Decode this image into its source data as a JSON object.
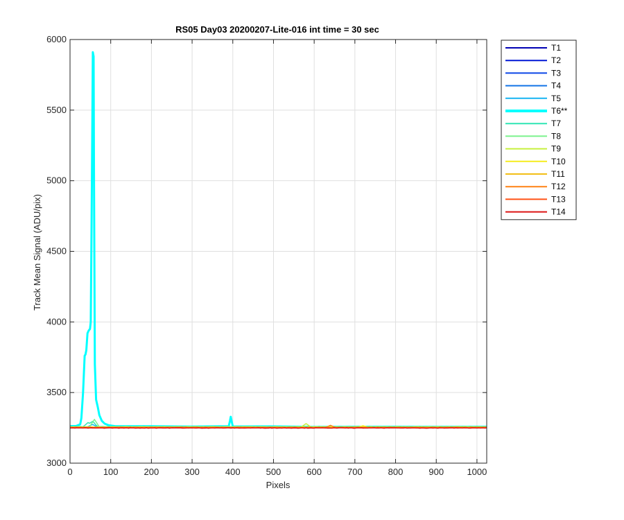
{
  "chart_data": {
    "type": "line",
    "title": "RS05 Day03 20200207-Lite-016 int time = 30 sec",
    "xlabel": "Pixels",
    "ylabel": "Track Mean Signal (ADU/pix)",
    "xlim": [
      0,
      1024
    ],
    "ylim": [
      3000,
      6000
    ],
    "xticks": [
      0,
      100,
      200,
      300,
      400,
      500,
      600,
      700,
      800,
      900,
      1000
    ],
    "yticks": [
      3000,
      3500,
      4000,
      4500,
      5000,
      5500,
      6000
    ],
    "grid": true,
    "legend_placement": "outside-top-right",
    "series": [
      {
        "name": "T1",
        "color": "#0000b4",
        "baseline": 3251,
        "bumps": []
      },
      {
        "name": "T2",
        "color": "#0016d6",
        "baseline": 3252,
        "bumps": []
      },
      {
        "name": "T3",
        "color": "#0b46e8",
        "baseline": 3252,
        "bumps": []
      },
      {
        "name": "T4",
        "color": "#1273e6",
        "baseline": 3254,
        "bumps": []
      },
      {
        "name": "T5",
        "color": "#15b4f2",
        "baseline": 3256,
        "bumps": [
          [
            55,
            3275
          ]
        ]
      },
      {
        "name": "T6**",
        "color": "#00ffff",
        "bold": true,
        "points": [
          [
            0,
            3262
          ],
          [
            15,
            3263
          ],
          [
            25,
            3275
          ],
          [
            28,
            3320
          ],
          [
            32,
            3500
          ],
          [
            36,
            3760
          ],
          [
            38,
            3770
          ],
          [
            40,
            3800
          ],
          [
            43,
            3920
          ],
          [
            46,
            3940
          ],
          [
            49,
            3950
          ],
          [
            51,
            4000
          ],
          [
            53,
            4700
          ],
          [
            55,
            5500
          ],
          [
            56,
            5910
          ],
          [
            58,
            5880
          ],
          [
            59,
            5000
          ],
          [
            61,
            3700
          ],
          [
            64,
            3450
          ],
          [
            68,
            3400
          ],
          [
            72,
            3340
          ],
          [
            78,
            3300
          ],
          [
            85,
            3280
          ],
          [
            95,
            3268
          ],
          [
            110,
            3262
          ],
          [
            200,
            3260
          ],
          [
            300,
            3260
          ],
          [
            390,
            3260
          ],
          [
            393,
            3300
          ],
          [
            395,
            3330
          ],
          [
            397,
            3300
          ],
          [
            400,
            3260
          ],
          [
            500,
            3260
          ],
          [
            600,
            3258
          ],
          [
            700,
            3258
          ],
          [
            800,
            3258
          ],
          [
            900,
            3258
          ],
          [
            1024,
            3258
          ]
        ]
      },
      {
        "name": "T7",
        "color": "#2ee6b4",
        "baseline": 3259,
        "bumps": [
          [
            55,
            3300
          ],
          [
            45,
            3290
          ]
        ]
      },
      {
        "name": "T8",
        "color": "#7af28c",
        "baseline": 3257,
        "bumps": [
          [
            60,
            3310
          ]
        ]
      },
      {
        "name": "T9",
        "color": "#c6f03c",
        "baseline": 3256,
        "bumps": [
          [
            580,
            3280
          ]
        ]
      },
      {
        "name": "T10",
        "color": "#f5ec1c",
        "baseline": 3255,
        "bumps": [
          [
            720,
            3265
          ]
        ]
      },
      {
        "name": "T11",
        "color": "#f2be15",
        "baseline": 3254,
        "bumps": []
      },
      {
        "name": "T12",
        "color": "#ff8214",
        "baseline": 3253,
        "bumps": [
          [
            640,
            3268
          ]
        ]
      },
      {
        "name": "T13",
        "color": "#ff5014",
        "baseline": 3250,
        "bumps": []
      },
      {
        "name": "T14",
        "color": "#dc1414",
        "baseline": 3249,
        "bumps": []
      }
    ]
  }
}
